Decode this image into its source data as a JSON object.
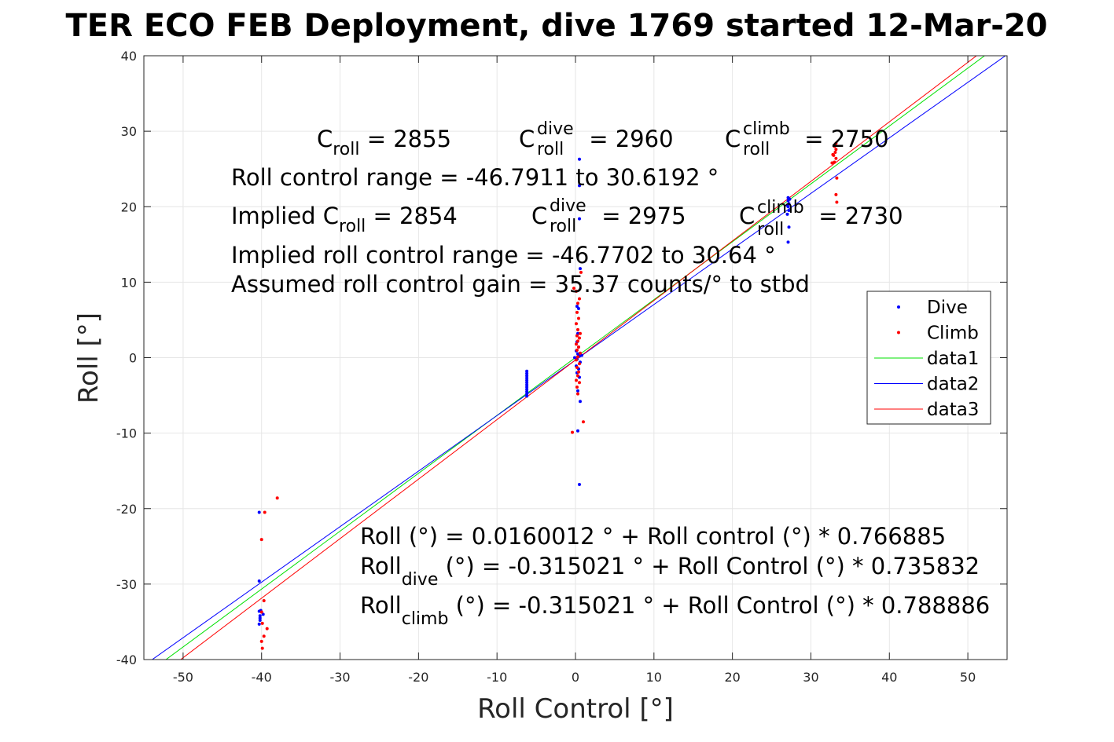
{
  "chart_data": {
    "type": "scatter",
    "title": "TER ECO FEB Deployment, dive 1769 started 12-Mar-20",
    "xlabel": "Roll Control [°]",
    "ylabel": "Roll [°]",
    "xlim": [
      -55,
      55
    ],
    "ylim": [
      -40,
      40
    ],
    "xticks": [
      -50,
      -40,
      -30,
      -20,
      -10,
      0,
      10,
      20,
      30,
      40,
      50
    ],
    "yticks": [
      -40,
      -30,
      -20,
      -10,
      0,
      10,
      20,
      30,
      40
    ],
    "grid": true,
    "legend_position": "right",
    "legend": [
      "Dive",
      "Climb",
      "data1",
      "data2",
      "data3"
    ],
    "series": [
      {
        "name": "Dive",
        "kind": "points",
        "color": "#0000ff",
        "points": [
          [
            -40.3,
            -20.5
          ],
          [
            -40.3,
            -29.6
          ],
          [
            -40.3,
            -33.6
          ],
          [
            -40.2,
            -34.2
          ],
          [
            -40.2,
            -34.8
          ],
          [
            -40.3,
            -35.3
          ],
          [
            -40.1,
            -33.5
          ],
          [
            -40.2,
            -34.5
          ],
          [
            -39.8,
            -34.0
          ],
          [
            -6.2,
            -1.8
          ],
          [
            -6.2,
            -2.1
          ],
          [
            -6.2,
            -2.4
          ],
          [
            -6.2,
            -2.7
          ],
          [
            -6.2,
            -3.0
          ],
          [
            -6.2,
            -3.3
          ],
          [
            -6.2,
            -3.6
          ],
          [
            -6.2,
            -3.9
          ],
          [
            -6.2,
            -4.2
          ],
          [
            -6.2,
            -4.5
          ],
          [
            -6.2,
            -4.8
          ],
          [
            -6.2,
            -5.1
          ],
          [
            0.5,
            26.3
          ],
          [
            0.5,
            22.8
          ],
          [
            0.5,
            18.4
          ],
          [
            0.6,
            11.8
          ],
          [
            0.2,
            6.8
          ],
          [
            0.4,
            6.5
          ],
          [
            0.3,
            3.2
          ],
          [
            0.2,
            2.1
          ],
          [
            0.4,
            1.4
          ],
          [
            0.1,
            0.9
          ],
          [
            0.3,
            0.5
          ],
          [
            0.5,
            0.2
          ],
          [
            0.2,
            -0.2
          ],
          [
            0.6,
            -0.6
          ],
          [
            0.1,
            -1.1
          ],
          [
            0.4,
            -1.5
          ],
          [
            0.2,
            -2.0
          ],
          [
            0.5,
            -2.6
          ],
          [
            0.3,
            -4.4
          ],
          [
            0.6,
            -5.8
          ],
          [
            0.3,
            -9.7
          ],
          [
            0.5,
            -16.8
          ],
          [
            0.8,
            0.3
          ],
          [
            -0.1,
            0.0
          ],
          [
            27.1,
            21.2
          ],
          [
            27.1,
            20.8
          ],
          [
            27.2,
            20.4
          ],
          [
            27.1,
            20.0
          ],
          [
            27.2,
            19.5
          ],
          [
            27.0,
            19.0
          ],
          [
            27.2,
            17.3
          ],
          [
            27.1,
            15.3
          ],
          [
            27.3,
            21.0
          ],
          [
            27.0,
            20.2
          ]
        ]
      },
      {
        "name": "Climb",
        "kind": "points",
        "color": "#ff0000",
        "points": [
          [
            -38.0,
            -18.6
          ],
          [
            -39.6,
            -20.5
          ],
          [
            -40.0,
            -24.1
          ],
          [
            -39.7,
            -32.2
          ],
          [
            -40.0,
            -33.7
          ],
          [
            -39.9,
            -35.2
          ],
          [
            -39.3,
            -35.9
          ],
          [
            -39.7,
            -36.9
          ],
          [
            -40.0,
            -37.6
          ],
          [
            -39.9,
            -38.5
          ],
          [
            0.7,
            11.3
          ],
          [
            -0.2,
            9.2
          ],
          [
            0.1,
            8.8
          ],
          [
            0.5,
            7.8
          ],
          [
            0.3,
            7.2
          ],
          [
            0.2,
            6.0
          ],
          [
            0.4,
            5.2
          ],
          [
            0.1,
            4.5
          ],
          [
            0.3,
            3.7
          ],
          [
            0.6,
            3.2
          ],
          [
            0.2,
            2.9
          ],
          [
            0.5,
            2.6
          ],
          [
            0.3,
            2.2
          ],
          [
            0.1,
            1.8
          ],
          [
            0.4,
            1.4
          ],
          [
            0.2,
            1.0
          ],
          [
            0.6,
            0.6
          ],
          [
            0.3,
            0.1
          ],
          [
            0.1,
            -0.3
          ],
          [
            0.5,
            -0.8
          ],
          [
            0.2,
            -1.3
          ],
          [
            0.4,
            -1.9
          ],
          [
            0.3,
            -2.4
          ],
          [
            0.1,
            -3.0
          ],
          [
            0.5,
            -3.3
          ],
          [
            0.2,
            -3.9
          ],
          [
            0.3,
            -4.8
          ],
          [
            1.0,
            -8.5
          ],
          [
            -0.4,
            -9.9
          ],
          [
            33.2,
            28.4
          ],
          [
            33.0,
            28.0
          ],
          [
            33.2,
            27.6
          ],
          [
            33.1,
            27.2
          ],
          [
            32.9,
            26.8
          ],
          [
            33.2,
            26.4
          ],
          [
            33.0,
            25.9
          ],
          [
            32.7,
            25.8
          ],
          [
            33.3,
            23.8
          ],
          [
            33.2,
            21.6
          ],
          [
            33.3,
            20.6
          ],
          [
            32.8,
            26.9
          ]
        ]
      },
      {
        "name": "data1",
        "kind": "line",
        "color": "#00e000",
        "intercept": 0.0160012,
        "slope": 0.766885
      },
      {
        "name": "data2",
        "kind": "line",
        "color": "#0000ff",
        "intercept": -0.315021,
        "slope": 0.735832
      },
      {
        "name": "data3",
        "kind": "line",
        "color": "#ff0000",
        "intercept": -0.315021,
        "slope": 0.788886
      }
    ],
    "annotations": {
      "c_roll": {
        "label": "C",
        "sub": "roll",
        "value": " = 2855"
      },
      "c_roll_dive": {
        "label": "C",
        "sub": "roll",
        "sup": "dive",
        "value": " = 2960"
      },
      "c_roll_climb": {
        "label": "C",
        "sub": "roll",
        "sup": "climb",
        "value": " = 2750"
      },
      "roll_range": "Roll control range = -46.7911 to 30.6192 °",
      "implied_c_roll": {
        "label": "Implied C",
        "sub": "roll",
        "value": " = 2854"
      },
      "implied_c_roll_dive": {
        "label": "C",
        "sub": "roll",
        "sup": "dive",
        "value": " = 2975"
      },
      "implied_c_roll_climb": {
        "label": "C",
        "sub": "roll",
        "sup": "climb",
        "value": " = 2730"
      },
      "implied_range": "Implied roll control range = -46.7702 to 30.64 °",
      "gain": "Assumed roll control gain = 35.37 counts/° to stbd",
      "fit_all": "Roll (°) = 0.0160012 ° + Roll control (°) * 0.766885",
      "fit_dive": {
        "label": "Roll",
        "sub": "dive",
        "value": " (°) = -0.315021 ° + Roll Control (°) * 0.735832"
      },
      "fit_climb": {
        "label": "Roll",
        "sub": "climb",
        "value": " (°) = -0.315021 ° + Roll Control (°) * 0.788886"
      }
    }
  }
}
